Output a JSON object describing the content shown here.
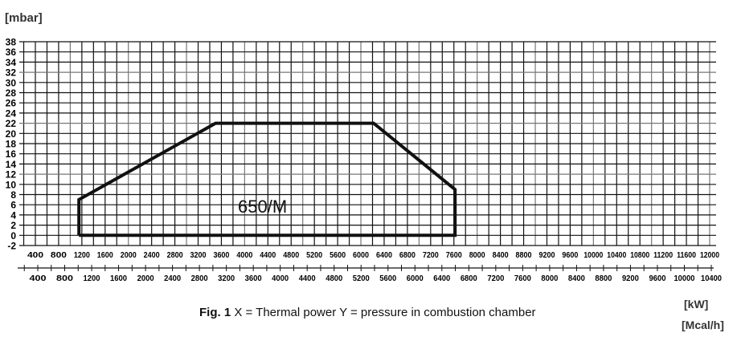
{
  "chart_data": {
    "type": "line",
    "title": "",
    "caption_prefix": "Fig. 1",
    "caption_text": "X = Thermal power Y = pressure in combustion chamber",
    "ylabel": "[mbar]",
    "xlabel_primary": "[kW]",
    "xlabel_secondary": "[Mcal/h]",
    "ylim": [
      -2,
      38
    ],
    "y_ticks": [
      38,
      36,
      34,
      32,
      30,
      28,
      26,
      24,
      22,
      20,
      18,
      16,
      14,
      12,
      10,
      8,
      6,
      4,
      2,
      0,
      -2
    ],
    "x_primary_ticks": [
      400,
      800,
      1200,
      1600,
      2000,
      2400,
      2800,
      3200,
      3600,
      4000,
      4400,
      4800,
      5200,
      5600,
      6000,
      6400,
      6800,
      7200,
      7600,
      8000,
      8400,
      8800,
      9200,
      9600,
      10000,
      10400,
      10800,
      11200,
      11600,
      12000
    ],
    "x_secondary_ticks": [
      400,
      800,
      1200,
      1600,
      2000,
      2400,
      2800,
      3200,
      3600,
      4000,
      4400,
      4800,
      5200,
      5600,
      6000,
      6400,
      6800,
      7200,
      7600,
      8000,
      8400,
      8800,
      9200,
      9600,
      10000,
      10400
    ],
    "grid": true,
    "series": [
      {
        "name": "650/M",
        "label": "650/M",
        "x_kW": [
          1150,
          1150,
          3500,
          6220,
          7620,
          7620,
          1150
        ],
        "y_mbar": [
          0,
          7,
          22,
          22,
          9,
          0,
          0
        ]
      }
    ]
  }
}
